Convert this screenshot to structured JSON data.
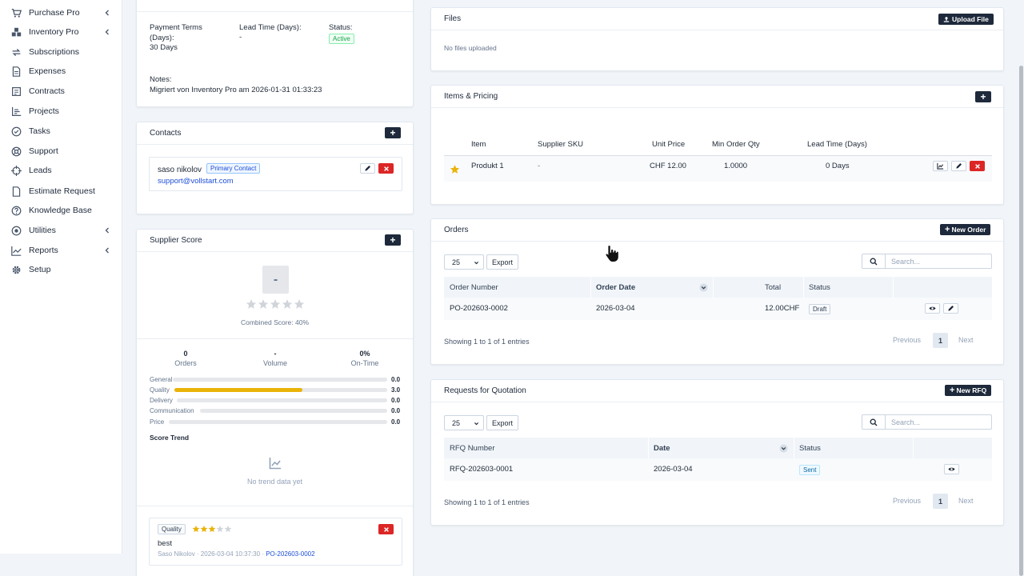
{
  "sidebar": {
    "items": [
      {
        "label": "Purchase Pro",
        "icon": "cart-icon",
        "expandable": true
      },
      {
        "label": "Inventory Pro",
        "icon": "boxes-icon",
        "expandable": true
      },
      {
        "label": "Subscriptions",
        "icon": "refresh-icon",
        "expandable": false
      },
      {
        "label": "Expenses",
        "icon": "document-icon",
        "expandable": false
      },
      {
        "label": "Contracts",
        "icon": "contract-icon",
        "expandable": false
      },
      {
        "label": "Projects",
        "icon": "chart-icon",
        "expandable": false
      },
      {
        "label": "Tasks",
        "icon": "check-circle-icon",
        "expandable": false
      },
      {
        "label": "Support",
        "icon": "lifebuoy-icon",
        "expandable": false
      },
      {
        "label": "Leads",
        "icon": "target-icon",
        "expandable": false
      },
      {
        "label": "Estimate Request",
        "icon": "file-icon",
        "expandable": false
      },
      {
        "label": "Knowledge Base",
        "icon": "question-circle-icon",
        "expandable": false
      },
      {
        "label": "Utilities",
        "icon": "dot-circle-icon",
        "expandable": true
      },
      {
        "label": "Reports",
        "icon": "line-chart-icon",
        "expandable": true
      },
      {
        "label": "Setup",
        "icon": "gear-icon",
        "expandable": false
      }
    ]
  },
  "details": {
    "payment_terms_label": "Payment Terms (Days):",
    "payment_terms_value": "30 Days",
    "lead_time_label": "Lead Time (Days):",
    "lead_time_value": "-",
    "status_label": "Status:",
    "status_value": "Active",
    "notes_label": "Notes:",
    "notes_value": "Migriert von Inventory Pro am 2026-01-31 01:33:23"
  },
  "contacts": {
    "title": "Contacts",
    "name": "saso nikolov",
    "badge": "Primary Contact",
    "email": "support@vollstart.com"
  },
  "score": {
    "title": "Supplier Score",
    "grade": "-",
    "stars_filled": 0,
    "combined_label": "Combined Score: 40%",
    "stats": [
      {
        "value": "0",
        "label": "Orders"
      },
      {
        "value": "-",
        "label": "Volume"
      },
      {
        "value": "0%",
        "label": "On-Time"
      }
    ],
    "bars": [
      {
        "label": "General",
        "value": "0.0",
        "fraction": 0.0
      },
      {
        "label": "Quality",
        "value": "3.0",
        "fraction": 0.6
      },
      {
        "label": "Delivery",
        "value": "0.0",
        "fraction": 0.0
      },
      {
        "label": "Communication",
        "value": "0.0",
        "fraction": 0.0
      },
      {
        "label": "Price",
        "value": "0.0",
        "fraction": 0.0
      }
    ],
    "trend_title": "Score Trend",
    "trend_empty": "No trend data yet"
  },
  "review": {
    "category": "Quality",
    "stars_filled": 3,
    "stars_total": 5,
    "text": "best",
    "meta": "Saso Nikolov · 2026-03-04 10:37:30 · ",
    "link": "PO-202603-0002"
  },
  "files": {
    "title": "Files",
    "upload_label": "Upload File",
    "empty": "No files uploaded"
  },
  "items": {
    "title": "Items & Pricing",
    "headers": [
      "Item",
      "Supplier SKU",
      "Unit Price",
      "Min Order Qty",
      "Lead Time (Days)"
    ],
    "rows": [
      {
        "item": "Produkt 1",
        "sku": "-",
        "price": "CHF 12.00",
        "moq": "1.0000",
        "lead": "0 Days"
      }
    ]
  },
  "orders": {
    "title": "Orders",
    "new_label": "New Order",
    "page_size": "25",
    "export_label": "Export",
    "search_placeholder": "Search...",
    "headers": [
      "Order Number",
      "Order Date",
      "Total",
      "Status"
    ],
    "rows": [
      {
        "number": "PO-202603-0002",
        "date": "2026-03-04",
        "total": "12.00CHF",
        "status": "Draft"
      }
    ],
    "info": "Showing 1 to 1 of 1 entries",
    "prev": "Previous",
    "page": "1",
    "next": "Next"
  },
  "rfq": {
    "title": "Requests for Quotation",
    "new_label": "New RFQ",
    "page_size": "25",
    "export_label": "Export",
    "search_placeholder": "Search...",
    "headers": [
      "RFQ Number",
      "Date",
      "Status"
    ],
    "rows": [
      {
        "number": "RFQ-202603-0001",
        "date": "2026-03-04",
        "status": "Sent"
      }
    ],
    "info": "Showing 1 to 1 of 1 entries",
    "prev": "Previous",
    "page": "1",
    "next": "Next"
  }
}
